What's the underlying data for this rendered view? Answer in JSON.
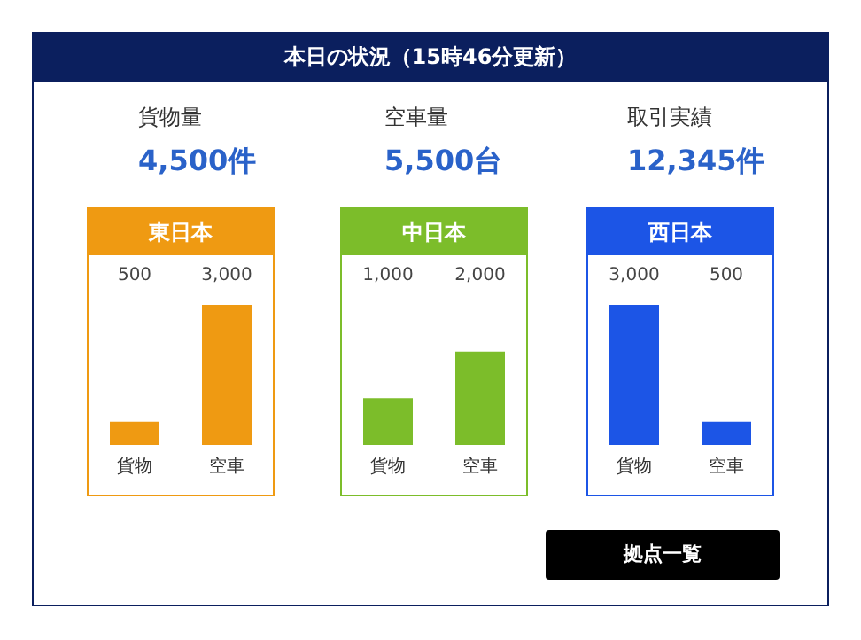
{
  "chart_data": [
    {
      "type": "other",
      "title": "本日の状況（15時46分更新）",
      "annotations": [
        "貨物量",
        "4,500件",
        "空車量",
        "5,500台",
        "取引実績",
        "12,345件",
        "拠点一覧"
      ]
    },
    {
      "type": "bar",
      "title": "東日本",
      "categories": [
        "貨物",
        "空車"
      ],
      "values": [
        500,
        3000
      ],
      "colors": [
        "#ef9a12",
        "#ef9a12"
      ],
      "value_labels": [
        "500",
        "3,000"
      ]
    },
    {
      "type": "bar",
      "title": "中日本",
      "categories": [
        "貨物",
        "空車"
      ],
      "values": [
        1000,
        2000
      ],
      "colors": [
        "#7cbd2a",
        "#7cbd2a"
      ],
      "value_labels": [
        "1,000",
        "2,000"
      ]
    },
    {
      "type": "bar",
      "title": "西日本",
      "categories": [
        "貨物",
        "空車"
      ],
      "values": [
        3000,
        500
      ],
      "colors": [
        "#1c55e6",
        "#1c55e6"
      ],
      "value_labels": [
        "3,000",
        "500"
      ]
    }
  ]
}
